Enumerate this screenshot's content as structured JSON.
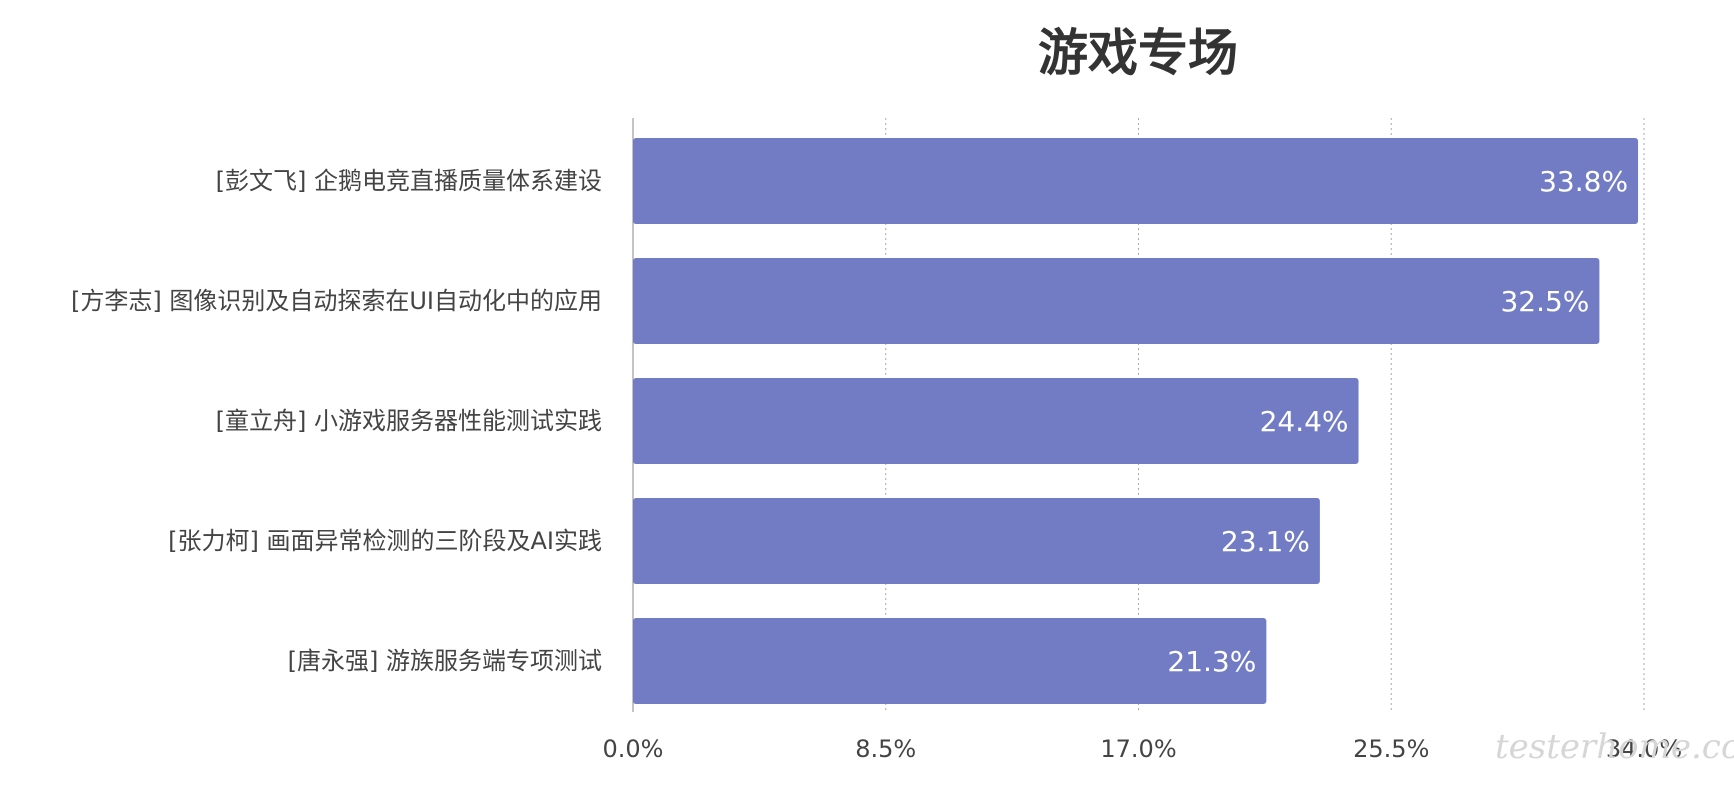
{
  "chart_data": {
    "type": "bar",
    "orientation": "horizontal",
    "title": "游戏专场",
    "categories": [
      "[彭文飞] 企鹅电竞直播质量体系建设",
      "[方李志] 图像识别及自动探索在UI自动化中的应用",
      "[童立舟] 小游戏服务器性能测试实践",
      "[张力柯] 画面异常检测的三阶段及AI实践",
      "[唐永强] 游族服务端专项测试"
    ],
    "values": [
      33.8,
      32.5,
      24.4,
      23.1,
      21.3
    ],
    "data_labels": [
      "33.8%",
      "32.5%",
      "24.4%",
      "23.1%",
      "21.3%"
    ],
    "xlim": [
      0,
      34
    ],
    "x_ticks": [
      0,
      8.5,
      17,
      25.5,
      34
    ],
    "x_tick_labels": [
      "0.0%",
      "8.5%",
      "17.0%",
      "25.5%",
      "34.0%"
    ],
    "xlabel": "",
    "ylabel": "",
    "grid": "vertical dotted",
    "legend": "none",
    "colors": {
      "bar": "#717cc4",
      "grid": "#a8a8a8",
      "axis": "#b0b0b0",
      "text": "#444444",
      "bar_text": "#ffffff"
    }
  },
  "watermark": "testerhome.com"
}
